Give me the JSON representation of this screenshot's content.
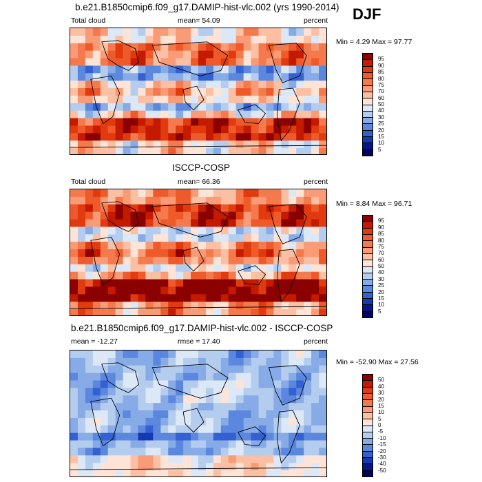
{
  "season": "DJF",
  "panels": [
    {
      "title": "b.e21.B1850cmip6.f09_g17.DAMIP-hist-vlc.002 (yrs 1990-2014)",
      "left_label": "Total cloud",
      "stat_label": "mean=  54.09",
      "units": "percent",
      "minmax": "Min =   4.29 Max =  97.77",
      "kind": "model",
      "colorbar": {
        "labels": [
          "95",
          "90",
          "85",
          "80",
          "75",
          "70",
          "60",
          "50",
          "40",
          "30",
          "25",
          "20",
          "15",
          "10",
          "5"
        ],
        "colors": [
          "#8b0000",
          "#c41a00",
          "#e03a0e",
          "#ee5a2a",
          "#f47a4d",
          "#f89b76",
          "#fbbfa3",
          "#fde4d6",
          "#dde8f6",
          "#b4cdee",
          "#86abe6",
          "#5b87de",
          "#3461d2",
          "#1738b4",
          "#08158a",
          "#000060"
        ]
      }
    },
    {
      "title": "ISCCP-COSP",
      "left_label": "Total cloud",
      "stat_label": "mean=  66.36",
      "units": "percent",
      "minmax": "Min =   8.84 Max =  96.71",
      "kind": "obs",
      "colorbar": {
        "labels": [
          "95",
          "90",
          "85",
          "80",
          "75",
          "70",
          "60",
          "50",
          "40",
          "30",
          "25",
          "20",
          "15",
          "10",
          "5"
        ],
        "colors": [
          "#8b0000",
          "#c41a00",
          "#e03a0e",
          "#ee5a2a",
          "#f47a4d",
          "#f89b76",
          "#fbbfa3",
          "#fde4d6",
          "#dde8f6",
          "#b4cdee",
          "#86abe6",
          "#5b87de",
          "#3461d2",
          "#1738b4",
          "#08158a",
          "#000060"
        ]
      }
    },
    {
      "title": "b.e21.B1850cmip6.f09_g17.DAMIP-hist-vlc.002 - ISCCP-COSP",
      "left_label": "mean = -12.27",
      "stat_label": "rmse =  17.40",
      "units": "percent",
      "minmax": "Min = -52.90 Max =  27.56",
      "kind": "diff",
      "colorbar": {
        "labels": [
          "50",
          "40",
          "30",
          "20",
          "15",
          "10",
          "5",
          "0",
          "-5",
          "-10",
          "-15",
          "-20",
          "-30",
          "-40",
          "-50"
        ],
        "colors": [
          "#8b0000",
          "#c41a00",
          "#e03a0e",
          "#ee5a2a",
          "#f47a4d",
          "#f89b76",
          "#fbbfa3",
          "#fde4d6",
          "#dde8f6",
          "#b4cdee",
          "#86abe6",
          "#5b87de",
          "#3461d2",
          "#1738b4",
          "#08158a",
          "#000060"
        ]
      }
    }
  ]
}
